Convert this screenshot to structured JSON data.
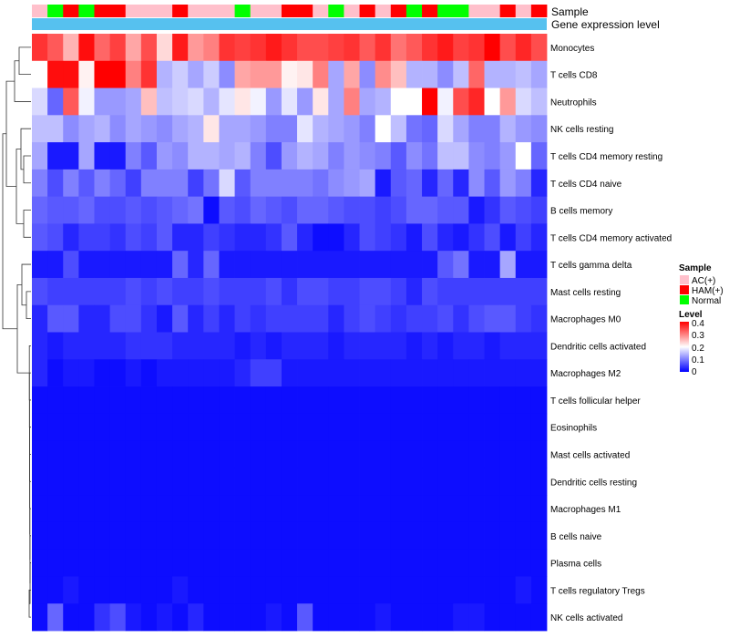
{
  "chart_data": {
    "type": "heatmap",
    "title": "",
    "annotation_labels": {
      "sample": "Sample",
      "expression": "Gene expression level"
    },
    "samples": [
      "AC(+)",
      "Normal",
      "HAM(+)",
      "Normal",
      "HAM(+)",
      "HAM(+)",
      "AC(+)",
      "AC(+)",
      "AC(+)",
      "HAM(+)",
      "AC(+)",
      "AC(+)",
      "AC(+)",
      "Normal",
      "AC(+)",
      "AC(+)",
      "HAM(+)",
      "HAM(+)",
      "AC(+)",
      "Normal",
      "AC(+)",
      "HAM(+)",
      "AC(+)",
      "HAM(+)",
      "Normal",
      "HAM(+)",
      "Normal",
      "Normal",
      "AC(+)",
      "AC(+)",
      "HAM(+)",
      "AC(+)",
      "HAM(+)"
    ],
    "rows": [
      "Monocytes",
      "T cells CD8",
      "Neutrophils",
      "NK cells resting",
      "T cells CD4 memory resting",
      "T cells CD4 naive",
      "B cells memory",
      "T cells CD4 memory activated",
      "T cells gamma delta",
      "Mast cells resting",
      "Macrophages M0",
      "Dendritic cells activated",
      "Macrophages M2",
      "T cells follicular helper",
      "Eosinophils",
      "Mast cells activated",
      "Dendritic cells resting",
      "Macrophages M1",
      "B cells naive",
      "Plasma cells",
      "T cells regulatory  Tregs",
      "NK cells activated"
    ],
    "values": [
      [
        0.36,
        0.33,
        0.26,
        0.39,
        0.32,
        0.35,
        0.27,
        0.34,
        0.23,
        0.38,
        0.28,
        0.3,
        0.36,
        0.35,
        0.36,
        0.38,
        0.36,
        0.34,
        0.34,
        0.35,
        0.36,
        0.33,
        0.36,
        0.31,
        0.33,
        0.36,
        0.38,
        0.35,
        0.36,
        0.4,
        0.34,
        0.37,
        0.34
      ],
      [
        0.2,
        0.39,
        0.39,
        0.21,
        0.4,
        0.4,
        0.3,
        0.36,
        0.14,
        0.16,
        0.13,
        0.16,
        0.11,
        0.27,
        0.28,
        0.28,
        0.21,
        0.22,
        0.3,
        0.13,
        0.27,
        0.11,
        0.29,
        0.25,
        0.14,
        0.14,
        0.11,
        0.15,
        0.32,
        0.14,
        0.14,
        0.15,
        0.13
      ],
      [
        0.17,
        0.08,
        0.33,
        0.19,
        0.12,
        0.12,
        0.13,
        0.25,
        0.15,
        0.16,
        0.17,
        0.14,
        0.18,
        0.22,
        0.19,
        0.12,
        0.18,
        0.12,
        0.22,
        0.13,
        0.3,
        0.13,
        0.14,
        0.2,
        0.2,
        0.4,
        0.19,
        0.34,
        0.37,
        0.2,
        0.28,
        0.17,
        0.15
      ],
      [
        0.15,
        0.15,
        0.11,
        0.13,
        0.14,
        0.11,
        0.13,
        0.12,
        0.11,
        0.13,
        0.14,
        0.22,
        0.13,
        0.13,
        0.12,
        0.1,
        0.1,
        0.18,
        0.14,
        0.13,
        0.12,
        0.1,
        0.2,
        0.15,
        0.09,
        0.08,
        0.17,
        0.13,
        0.1,
        0.1,
        0.14,
        0.12,
        0.11
      ],
      [
        0.13,
        0.02,
        0.02,
        0.13,
        0.02,
        0.02,
        0.1,
        0.07,
        0.12,
        0.11,
        0.14,
        0.14,
        0.13,
        0.14,
        0.1,
        0.06,
        0.12,
        0.14,
        0.13,
        0.1,
        0.12,
        0.11,
        0.1,
        0.07,
        0.11,
        0.09,
        0.15,
        0.15,
        0.11,
        0.1,
        0.12,
        0.2,
        0.08
      ],
      [
        0.1,
        0.06,
        0.1,
        0.07,
        0.1,
        0.08,
        0.05,
        0.1,
        0.1,
        0.1,
        0.05,
        0.09,
        0.17,
        0.07,
        0.1,
        0.1,
        0.1,
        0.1,
        0.09,
        0.11,
        0.12,
        0.13,
        0.02,
        0.07,
        0.08,
        0.03,
        0.08,
        0.03,
        0.11,
        0.07,
        0.12,
        0.1,
        0.03
      ],
      [
        0.08,
        0.07,
        0.07,
        0.08,
        0.06,
        0.06,
        0.07,
        0.06,
        0.07,
        0.08,
        0.09,
        0.01,
        0.07,
        0.06,
        0.08,
        0.07,
        0.06,
        0.08,
        0.08,
        0.07,
        0.06,
        0.06,
        0.05,
        0.06,
        0.08,
        0.08,
        0.07,
        0.07,
        0.02,
        0.04,
        0.07,
        0.06,
        0.05
      ],
      [
        0.07,
        0.06,
        0.03,
        0.05,
        0.05,
        0.04,
        0.06,
        0.05,
        0.07,
        0.03,
        0.03,
        0.05,
        0.04,
        0.03,
        0.03,
        0.04,
        0.07,
        0.03,
        0.01,
        0.01,
        0.03,
        0.06,
        0.05,
        0.04,
        0.02,
        0.06,
        0.03,
        0.02,
        0.04,
        0.06,
        0.02,
        0.05,
        0.03
      ],
      [
        0.02,
        0.02,
        0.06,
        0.02,
        0.02,
        0.02,
        0.02,
        0.02,
        0.02,
        0.08,
        0.03,
        0.08,
        0.02,
        0.02,
        0.02,
        0.02,
        0.02,
        0.02,
        0.02,
        0.02,
        0.02,
        0.02,
        0.02,
        0.02,
        0.02,
        0.02,
        0.07,
        0.09,
        0.02,
        0.02,
        0.13,
        0.02,
        0.02
      ],
      [
        0.06,
        0.05,
        0.05,
        0.05,
        0.05,
        0.05,
        0.06,
        0.05,
        0.06,
        0.05,
        0.05,
        0.06,
        0.05,
        0.05,
        0.05,
        0.06,
        0.04,
        0.06,
        0.06,
        0.05,
        0.05,
        0.06,
        0.06,
        0.05,
        0.03,
        0.06,
        0.05,
        0.05,
        0.05,
        0.05,
        0.05,
        0.05,
        0.05
      ],
      [
        0.03,
        0.07,
        0.07,
        0.03,
        0.03,
        0.06,
        0.06,
        0.04,
        0.02,
        0.07,
        0.03,
        0.05,
        0.03,
        0.05,
        0.04,
        0.05,
        0.05,
        0.05,
        0.05,
        0.03,
        0.05,
        0.06,
        0.05,
        0.04,
        0.05,
        0.05,
        0.06,
        0.04,
        0.06,
        0.07,
        0.07,
        0.05,
        0.04
      ],
      [
        0.03,
        0.02,
        0.03,
        0.03,
        0.03,
        0.03,
        0.04,
        0.04,
        0.04,
        0.03,
        0.03,
        0.03,
        0.03,
        0.02,
        0.03,
        0.02,
        0.03,
        0.03,
        0.03,
        0.02,
        0.03,
        0.03,
        0.03,
        0.03,
        0.02,
        0.03,
        0.02,
        0.03,
        0.03,
        0.02,
        0.03,
        0.03,
        0.03
      ],
      [
        0.03,
        0.01,
        0.02,
        0.02,
        0.01,
        0.01,
        0.02,
        0.01,
        0.02,
        0.02,
        0.02,
        0.02,
        0.02,
        0.03,
        0.05,
        0.05,
        0.02,
        0.02,
        0.02,
        0.02,
        0.02,
        0.02,
        0.02,
        0.02,
        0.02,
        0.02,
        0.02,
        0.02,
        0.02,
        0.02,
        0.02,
        0.02,
        0.02
      ],
      [
        0.01,
        0.01,
        0.01,
        0.01,
        0.01,
        0.01,
        0.01,
        0.01,
        0.01,
        0.01,
        0.01,
        0.01,
        0.01,
        0.01,
        0.01,
        0.01,
        0.01,
        0.01,
        0.01,
        0.01,
        0.01,
        0.01,
        0.01,
        0.01,
        0.01,
        0.01,
        0.01,
        0.01,
        0.01,
        0.01,
        0.01,
        0.01,
        0.01
      ],
      [
        0.01,
        0.01,
        0.01,
        0.01,
        0.01,
        0.01,
        0.01,
        0.01,
        0.01,
        0.01,
        0.01,
        0.01,
        0.01,
        0.01,
        0.01,
        0.01,
        0.01,
        0.01,
        0.01,
        0.01,
        0.01,
        0.01,
        0.01,
        0.01,
        0.01,
        0.01,
        0.01,
        0.01,
        0.01,
        0.01,
        0.01,
        0.01,
        0.01
      ],
      [
        0.01,
        0.01,
        0.01,
        0.01,
        0.01,
        0.01,
        0.01,
        0.01,
        0.01,
        0.01,
        0.01,
        0.01,
        0.01,
        0.01,
        0.01,
        0.01,
        0.01,
        0.01,
        0.01,
        0.01,
        0.01,
        0.01,
        0.01,
        0.01,
        0.01,
        0.01,
        0.01,
        0.01,
        0.01,
        0.01,
        0.01,
        0.01,
        0.01
      ],
      [
        0.01,
        0.01,
        0.01,
        0.01,
        0.01,
        0.01,
        0.01,
        0.01,
        0.01,
        0.01,
        0.01,
        0.01,
        0.01,
        0.01,
        0.01,
        0.01,
        0.01,
        0.01,
        0.01,
        0.01,
        0.01,
        0.01,
        0.01,
        0.01,
        0.01,
        0.01,
        0.01,
        0.01,
        0.01,
        0.01,
        0.01,
        0.01,
        0.01
      ],
      [
        0.01,
        0.01,
        0.01,
        0.01,
        0.01,
        0.01,
        0.01,
        0.01,
        0.01,
        0.01,
        0.01,
        0.01,
        0.01,
        0.01,
        0.01,
        0.01,
        0.01,
        0.01,
        0.01,
        0.01,
        0.01,
        0.01,
        0.01,
        0.01,
        0.01,
        0.01,
        0.01,
        0.01,
        0.01,
        0.01,
        0.01,
        0.01,
        0.01
      ],
      [
        0.01,
        0.01,
        0.01,
        0.01,
        0.01,
        0.01,
        0.01,
        0.01,
        0.01,
        0.01,
        0.01,
        0.01,
        0.01,
        0.01,
        0.01,
        0.01,
        0.01,
        0.01,
        0.01,
        0.01,
        0.01,
        0.01,
        0.01,
        0.01,
        0.01,
        0.01,
        0.01,
        0.01,
        0.01,
        0.01,
        0.01,
        0.01,
        0.01
      ],
      [
        0.01,
        0.01,
        0.01,
        0.01,
        0.01,
        0.01,
        0.01,
        0.01,
        0.01,
        0.01,
        0.01,
        0.01,
        0.01,
        0.01,
        0.01,
        0.01,
        0.01,
        0.01,
        0.01,
        0.01,
        0.01,
        0.01,
        0.01,
        0.01,
        0.01,
        0.01,
        0.01,
        0.01,
        0.01,
        0.01,
        0.01,
        0.01,
        0.01
      ],
      [
        0.01,
        0.01,
        0.02,
        0.01,
        0.01,
        0.01,
        0.01,
        0.01,
        0.01,
        0.02,
        0.01,
        0.01,
        0.01,
        0.01,
        0.01,
        0.01,
        0.01,
        0.01,
        0.01,
        0.01,
        0.01,
        0.01,
        0.01,
        0.01,
        0.01,
        0.01,
        0.01,
        0.01,
        0.01,
        0.01,
        0.01,
        0.02,
        0.01
      ],
      [
        0.01,
        0.08,
        0.01,
        0.01,
        0.04,
        0.06,
        0.02,
        0.01,
        0.02,
        0.01,
        0.03,
        0.01,
        0.01,
        0.01,
        0.01,
        0.02,
        0.01,
        0.07,
        0.01,
        0.01,
        0.01,
        0.01,
        0.02,
        0.01,
        0.01,
        0.01,
        0.01,
        0.02,
        0.02,
        0.01,
        0.01,
        0.01,
        0.01
      ]
    ],
    "color_scale": {
      "title": "Level",
      "min": 0,
      "max": 0.4,
      "ticks": [
        "0.4",
        "0.3",
        "0.2",
        "0.1",
        "0"
      ],
      "colors": [
        "#0000ff",
        "#ffffff",
        "#ff0000"
      ]
    },
    "sample_legend": {
      "title": "Sample",
      "items": [
        {
          "label": "AC(+)",
          "color": "#ffc0cb"
        },
        {
          "label": "HAM(+)",
          "color": "#ff0000"
        },
        {
          "label": "Normal",
          "color": "#00ff00"
        }
      ]
    },
    "expression_bar_color": "#56c1ef"
  }
}
